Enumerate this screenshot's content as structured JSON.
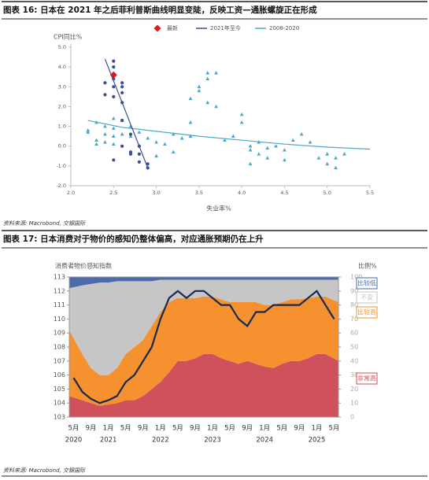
{
  "chart_data": [
    {
      "type": "scatter",
      "title": "图表 16: 日本在 2021 年之后菲利普斯曲线明显变陡，反映工资—通胀螺旋正在形成",
      "ylabel": "CPI同比%",
      "xlabel": "失业率%",
      "source": "资料来源: Macrobond, 交银国际",
      "xlim": [
        2,
        5.5
      ],
      "xticks": [
        {
          "value": 2,
          "label": "2.0"
        },
        {
          "value": 2.5,
          "label": "2.5"
        },
        {
          "value": 3,
          "label": "3.0"
        },
        {
          "value": 3.5,
          "label": "3.5"
        },
        {
          "value": 4,
          "label": "4.0"
        },
        {
          "value": 4.5,
          "label": "4.5"
        },
        {
          "value": 5,
          "label": "5.0"
        },
        {
          "value": 5.5,
          "label": "5.5"
        }
      ],
      "ylim": [
        -2,
        5
      ],
      "yticks": [
        {
          "value": -2,
          "label": "-2.0"
        },
        {
          "value": -1,
          "label": "-1.0"
        },
        {
          "value": 0,
          "label": "0.0"
        },
        {
          "value": 1,
          "label": "1.0"
        },
        {
          "value": 2,
          "label": "2.0"
        },
        {
          "value": 3,
          "label": "3.0"
        },
        {
          "value": 4,
          "label": "4.0"
        },
        {
          "value": 5,
          "label": "5.0"
        }
      ],
      "series": [
        {
          "name": "最新",
          "color": "#e8141c",
          "marker": "diamond",
          "x": [
            2.5
          ],
          "y": [
            3.6
          ]
        },
        {
          "name": "2021年至今",
          "color": "#3b4f94",
          "marker": "circle",
          "x": [
            2.4,
            2.4,
            2.5,
            2.5,
            2.5,
            2.5,
            2.5,
            2.6,
            2.6,
            2.6,
            2.6,
            2.6,
            2.5,
            2.7,
            2.7,
            2.8,
            2.8,
            2.9,
            2.9,
            2.8,
            2.6,
            2.7
          ],
          "y": [
            2.6,
            3.2,
            4.3,
            4.0,
            3.4,
            3.0,
            2.5,
            3.2,
            3.0,
            2.7,
            2.2,
            1.3,
            -0.7,
            0.6,
            -0.3,
            0.0,
            -0.8,
            -0.9,
            -1.1,
            -0.4,
            0.0,
            -0.4
          ],
          "trend": {
            "x": [
              2.4,
              2.9
            ],
            "y": [
              4.4,
              -1.1
            ]
          }
        },
        {
          "name": "2008-2020",
          "color": "#4aa8c8",
          "marker": "triangle",
          "x": [
            2.2,
            2.2,
            2.3,
            2.3,
            2.3,
            2.4,
            2.4,
            2.4,
            2.5,
            2.5,
            2.5,
            2.5,
            2.6,
            2.6,
            2.7,
            2.7,
            2.8,
            2.9,
            3.0,
            3.0,
            3.1,
            3.2,
            3.2,
            3.3,
            3.4,
            3.4,
            3.4,
            3.5,
            3.5,
            3.6,
            3.6,
            3.6,
            3.7,
            3.7,
            3.8,
            3.9,
            4.0,
            4.0,
            4.1,
            4.1,
            4.1,
            4.2,
            4.2,
            4.3,
            4.3,
            4.4,
            4.5,
            4.5,
            4.6,
            4.7,
            4.8,
            4.9,
            5.0,
            5.0,
            5.1,
            5.1,
            5.2
          ],
          "y": [
            0.8,
            0.7,
            1.2,
            0.3,
            0.1,
            1.0,
            0.6,
            0.2,
            1.4,
            0.9,
            0.5,
            0.1,
            1.3,
            0.6,
            1.0,
            0.5,
            0.7,
            0.4,
            0.2,
            -0.5,
            0.1,
            0.6,
            -0.3,
            0.4,
            0.5,
            2.4,
            1.2,
            3.0,
            2.8,
            3.7,
            3.4,
            2.2,
            3.7,
            2.0,
            0.3,
            0.5,
            1.6,
            1.2,
            0.0,
            -0.2,
            -0.9,
            0.2,
            -0.4,
            -0.1,
            -0.6,
            0.0,
            -0.2,
            -0.7,
            0.3,
            0.6,
            0.2,
            -0.6,
            -0.4,
            -0.9,
            -1.1,
            -0.6,
            -0.4
          ],
          "trend": {
            "x": [
              2.2,
              2.6,
              3.0,
              3.5,
              4.0,
              4.5,
              5.0,
              5.5
            ],
            "y": [
              1.3,
              0.95,
              0.75,
              0.5,
              0.3,
              0.1,
              -0.05,
              -0.15
            ]
          }
        }
      ]
    },
    {
      "type": "stacked_area_line",
      "title": "图表 17: 日本消费对于物价的感知仍整体偏高，对应通胀预期仍在上升",
      "ylabel": "消费者物价感知指数",
      "y2label": "比例%",
      "source": "资料来源: Macrobond, 交银国际",
      "categories": [
        "5月",
        null,
        "9月",
        null,
        "1月",
        null,
        "5月",
        null,
        "9月",
        null,
        "1月",
        null,
        "5月",
        null,
        "9月",
        null,
        "1月",
        null,
        "5月",
        null,
        "9月",
        null,
        "1月",
        null,
        "5月",
        null,
        "9月",
        null,
        "1月",
        null,
        "5月"
      ],
      "years": [
        "2020",
        null,
        null,
        null,
        "2021",
        null,
        null,
        null,
        null,
        null,
        "2022",
        null,
        null,
        null,
        null,
        null,
        "2023",
        null,
        null,
        null,
        null,
        null,
        "2024",
        null,
        null,
        null,
        null,
        null,
        "2025",
        null,
        null
      ],
      "ylim": [
        103,
        113
      ],
      "yticks": [
        103,
        104,
        105,
        106,
        107,
        108,
        109,
        110,
        111,
        112,
        113
      ],
      "y2lim": [
        0,
        100
      ],
      "y2ticks": [
        0,
        10,
        20,
        30,
        40,
        50,
        60,
        70,
        80,
        90,
        100
      ],
      "series": [
        {
          "name": "非常高",
          "type": "area",
          "axis": "y2",
          "color": "#cf515b",
          "values": [
            15,
            12,
            10,
            8,
            9,
            10,
            12,
            12,
            15,
            20,
            25,
            32,
            40,
            40,
            42,
            45,
            45,
            42,
            40,
            38,
            40,
            38,
            36,
            35,
            38,
            40,
            40,
            42,
            45,
            45,
            40
          ]
        },
        {
          "name": "比较高",
          "type": "area",
          "axis": "y2",
          "color": "#f5912e",
          "values": [
            47,
            33,
            25,
            22,
            21,
            25,
            33,
            38,
            40,
            45,
            50,
            50,
            45,
            45,
            43,
            41,
            41,
            42,
            42,
            44,
            42,
            44,
            44,
            45,
            44,
            44,
            44,
            43,
            41,
            41,
            42
          ]
        },
        {
          "name": "不变",
          "type": "area",
          "axis": "y2",
          "color": "#c6c6c6",
          "values": [
            30,
            49,
            60,
            66,
            66,
            62,
            52,
            47,
            42,
            32,
            23,
            16,
            13,
            13,
            13,
            12,
            12,
            14,
            16,
            16,
            16,
            16,
            18,
            18,
            16,
            14,
            14,
            13,
            12,
            12,
            16
          ]
        },
        {
          "name": "比较低",
          "type": "area",
          "axis": "y2",
          "color": "#4d6aaa",
          "values": [
            8,
            6,
            5,
            4,
            4,
            3,
            3,
            3,
            3,
            3,
            2,
            2,
            2,
            2,
            2,
            2,
            2,
            2,
            2,
            2,
            2,
            2,
            2,
            2,
            2,
            2,
            2,
            2,
            2,
            2,
            2
          ]
        },
        {
          "type": "line",
          "axis": "y",
          "color": "#17294d",
          "values": [
            105.8,
            104.8,
            104.3,
            104,
            104.2,
            104.5,
            105.5,
            106,
            107,
            108,
            110,
            111.5,
            112,
            111.5,
            112,
            112,
            111.5,
            111,
            111,
            110,
            109.5,
            110.5,
            110.5,
            111,
            111,
            111,
            111,
            111.5,
            112,
            111,
            110
          ]
        }
      ]
    }
  ]
}
